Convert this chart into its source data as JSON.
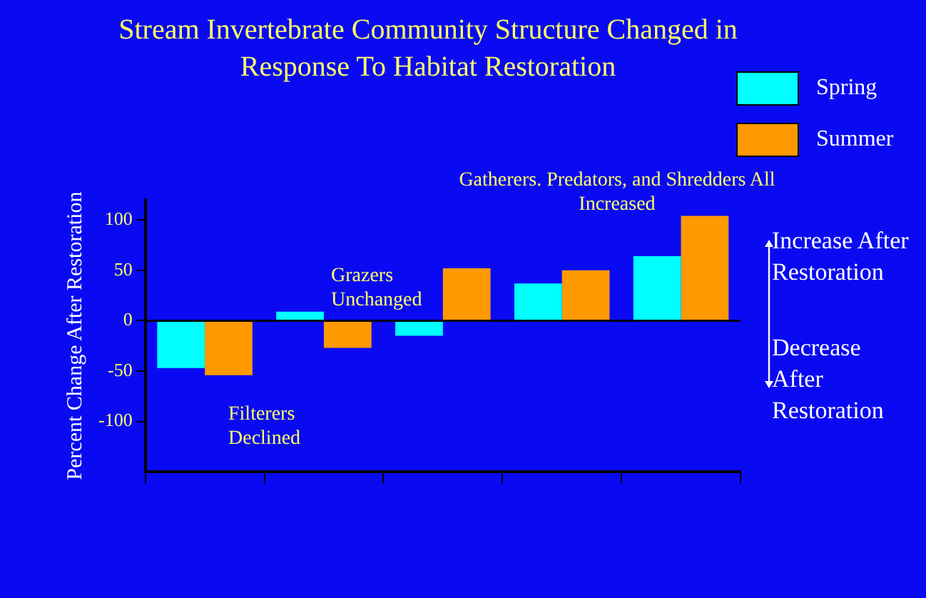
{
  "chart_data": {
    "type": "bar",
    "title": "Stream Invertebrate Community Structure Changed in Response To Habitat Restoration",
    "ylabel": "Percent Change After Restoration",
    "categories": [
      null,
      null,
      null,
      null,
      null
    ],
    "series": [
      {
        "name": "Spring",
        "color": "#00ffff",
        "values": [
          -47,
          9,
          -15,
          37,
          64
        ]
      },
      {
        "name": "Summer",
        "color": "#ff9900",
        "values": [
          -54,
          -27,
          52,
          50,
          104
        ]
      }
    ],
    "ylim": [
      -150,
      120
    ],
    "yticks": [
      -100,
      -50,
      0,
      50,
      100
    ],
    "ref_lines": [
      {
        "axis": "y",
        "value": 0,
        "color": "#000000"
      }
    ],
    "annotations": [
      "Gatherers. Predators, and Shredders All Increased",
      "Grazers Unchanged",
      "Filterers Declined",
      "Increase After Restoration",
      "Decrease After Restoration"
    ],
    "grid": false,
    "legend": "top right"
  }
}
